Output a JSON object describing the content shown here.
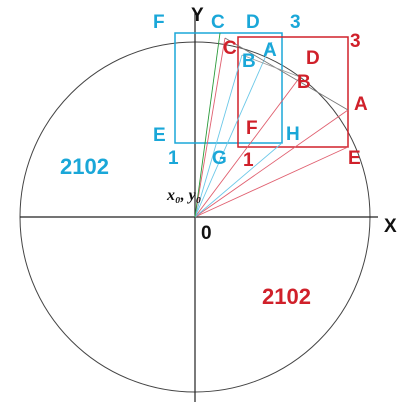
{
  "axes": {
    "x": "X",
    "y": "Y",
    "origin": "0",
    "center": "x₀, y₀"
  },
  "cyan": {
    "labels": [
      "F",
      "C",
      "D",
      "3",
      "B",
      "A",
      "E",
      "1",
      "G",
      "H"
    ],
    "region": "2102"
  },
  "red": {
    "labels": [
      "C",
      "D",
      "3",
      "B",
      "A",
      "F",
      "E",
      "1"
    ],
    "region": "2102"
  }
}
